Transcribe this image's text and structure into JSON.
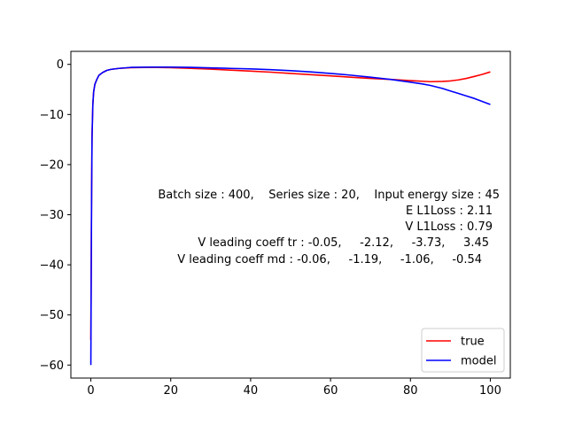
{
  "chart_data": {
    "type": "line",
    "title": "",
    "xlabel": "",
    "ylabel": "",
    "xlim": [
      -5,
      105
    ],
    "ylim": [
      -62.6,
      2.6
    ],
    "xticks": [
      0,
      20,
      40,
      60,
      80,
      100
    ],
    "yticks": [
      0,
      -10,
      -20,
      -30,
      -40,
      -50,
      -60
    ],
    "grid": false,
    "legend": {
      "position": "lower-right",
      "entries": [
        "true",
        "model"
      ]
    },
    "series": [
      {
        "name": "true",
        "color": "#ff0000",
        "x": [
          0.0,
          0.1,
          0.2,
          0.3,
          0.5,
          0.7,
          1.0,
          1.5,
          2.0,
          3.0,
          4.0,
          5.0,
          7.0,
          10.0,
          15.0,
          20.0,
          25.0,
          30.0,
          35.0,
          40.0,
          45.0,
          50.0,
          55.0,
          60.0,
          65.0,
          70.0,
          75.0,
          80.0,
          85.0,
          88.0,
          90.0,
          92.0,
          94.0,
          96.0,
          98.0,
          100.0
        ],
        "y": [
          -55.0,
          -38.0,
          -24.0,
          -14.0,
          -8.0,
          -5.5,
          -4.0,
          -3.0,
          -2.2,
          -1.6,
          -1.2,
          -1.0,
          -0.8,
          -0.65,
          -0.6,
          -0.65,
          -0.8,
          -0.95,
          -1.15,
          -1.35,
          -1.55,
          -1.8,
          -2.05,
          -2.3,
          -2.55,
          -2.8,
          -3.0,
          -3.25,
          -3.45,
          -3.4,
          -3.3,
          -3.1,
          -2.8,
          -2.4,
          -2.0,
          -1.5
        ]
      },
      {
        "name": "model",
        "color": "#0000ff",
        "x": [
          0.0,
          0.1,
          0.2,
          0.3,
          0.5,
          0.7,
          1.0,
          1.5,
          2.0,
          3.0,
          4.0,
          5.0,
          7.0,
          10.0,
          15.0,
          20.0,
          25.0,
          30.0,
          35.0,
          40.0,
          45.0,
          50.0,
          55.0,
          60.0,
          65.0,
          70.0,
          75.0,
          80.0,
          83.0,
          85.0,
          88.0,
          90.0,
          92.0,
          94.0,
          96.0,
          98.0,
          100.0
        ],
        "y": [
          -60.0,
          -40.0,
          -25.0,
          -14.5,
          -8.0,
          -5.5,
          -4.0,
          -3.0,
          -2.2,
          -1.6,
          -1.2,
          -1.0,
          -0.8,
          -0.6,
          -0.55,
          -0.55,
          -0.6,
          -0.7,
          -0.8,
          -0.9,
          -1.05,
          -1.25,
          -1.5,
          -1.8,
          -2.15,
          -2.55,
          -3.0,
          -3.55,
          -3.9,
          -4.2,
          -4.8,
          -5.3,
          -5.8,
          -6.3,
          -6.8,
          -7.4,
          -8.0
        ]
      }
    ],
    "annotations": [
      "Batch size : 400,    Series size : 20,    Input energy size : 45",
      "E L1Loss : 2.11",
      "V L1Loss : 0.79",
      "V leading coeff tr : -0.05,     -2.12,     -3.73,     3.45",
      "V leading coeff md : -0.06,     -1.19,     -1.06,     -0.54"
    ]
  }
}
